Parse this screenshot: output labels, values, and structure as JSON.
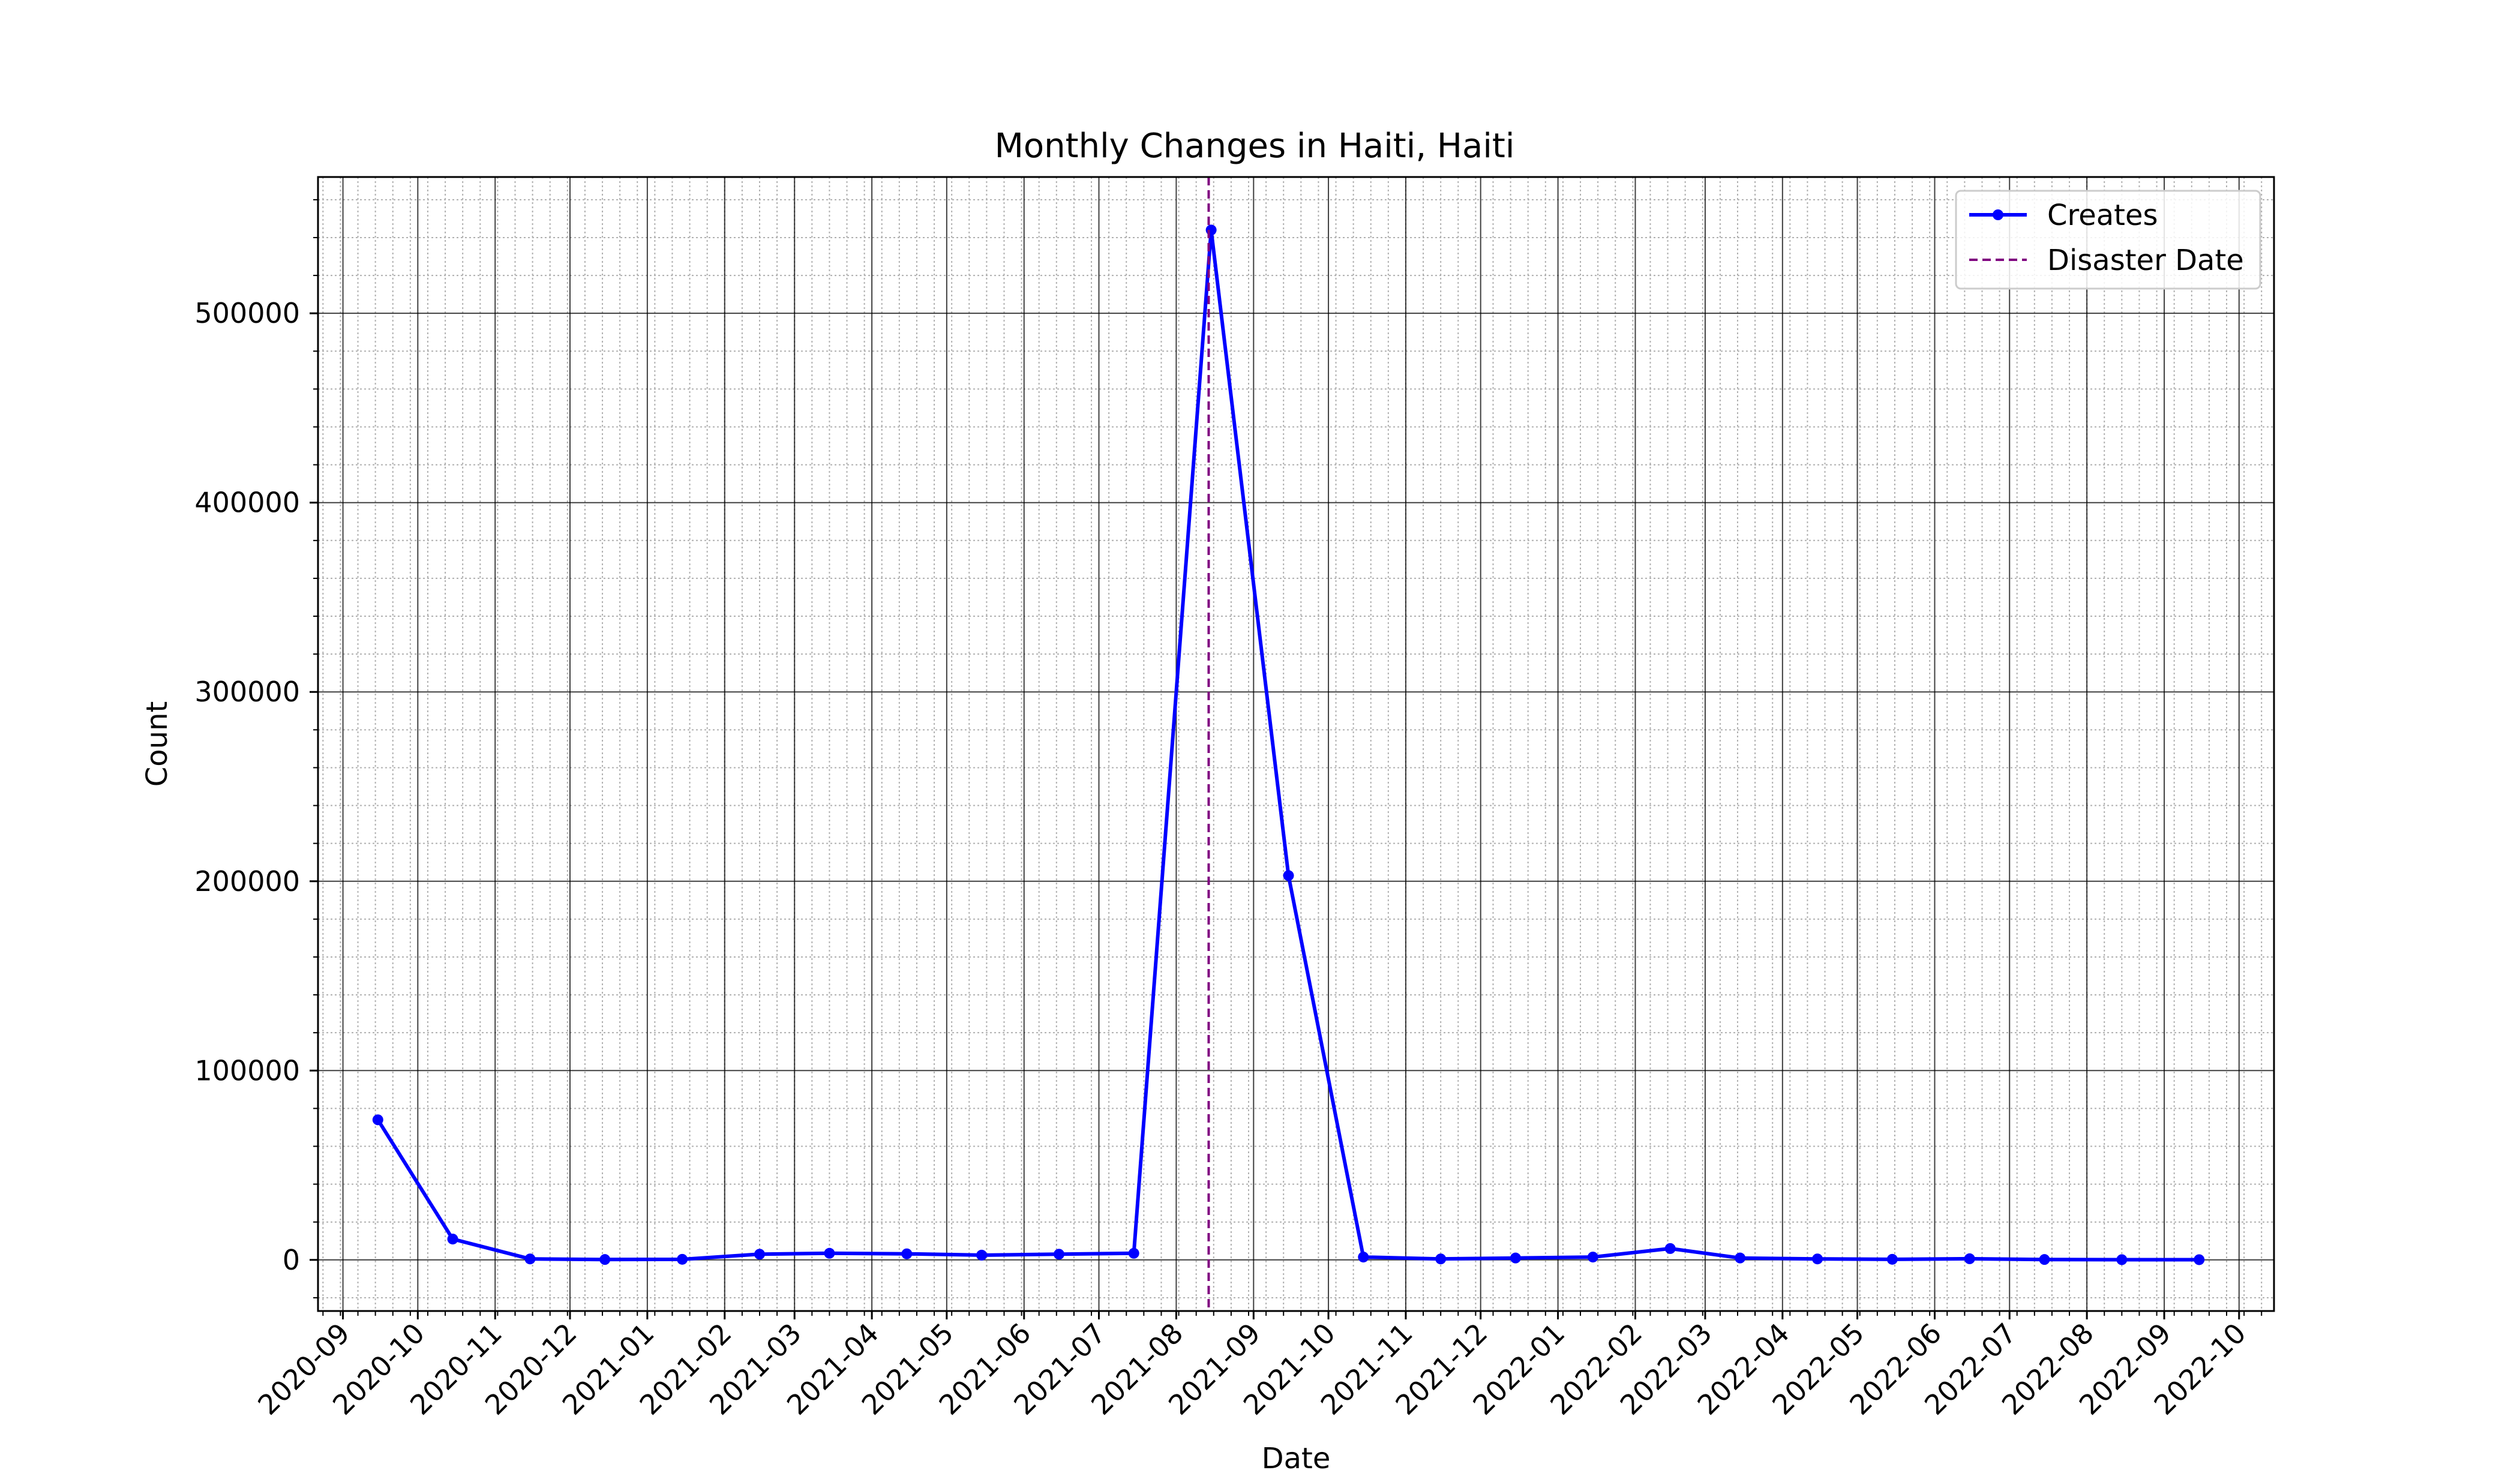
{
  "chart_data": {
    "type": "line",
    "title": "Monthly Changes in Haiti, Haiti",
    "xlabel": "Date",
    "ylabel": "Count",
    "x_ticks": [
      "2020-09",
      "2020-10",
      "2020-11",
      "2020-12",
      "2021-01",
      "2021-02",
      "2021-03",
      "2021-04",
      "2021-05",
      "2021-06",
      "2021-07",
      "2021-08",
      "2021-09",
      "2021-10",
      "2021-11",
      "2021-12",
      "2022-01",
      "2022-02",
      "2022-03",
      "2022-04",
      "2022-05",
      "2022-06",
      "2022-07",
      "2022-08",
      "2022-09",
      "2022-10"
    ],
    "xlim": [
      "2020-08-22",
      "2022-10-15"
    ],
    "y_ticks": [
      0,
      100000,
      200000,
      300000,
      400000,
      500000
    ],
    "ylim": [
      -27000,
      572000
    ],
    "grid": true,
    "minor_grid": true,
    "legend_position": "upper right",
    "series": [
      {
        "name": "Creates",
        "color": "#0000ff",
        "marker": "circle",
        "x": [
          "2020-09-15",
          "2020-10-15",
          "2020-11-15",
          "2020-12-15",
          "2021-01-15",
          "2021-02-15",
          "2021-03-15",
          "2021-04-15",
          "2021-05-15",
          "2021-06-15",
          "2021-07-15",
          "2021-08-15",
          "2021-09-15",
          "2021-10-15",
          "2021-11-15",
          "2021-12-15",
          "2022-01-15",
          "2022-02-15",
          "2022-03-15",
          "2022-04-15",
          "2022-05-15",
          "2022-06-15",
          "2022-07-15",
          "2022-08-15",
          "2022-09-15"
        ],
        "values": [
          74000,
          11000,
          500,
          200,
          300,
          3000,
          3500,
          3200,
          2500,
          3000,
          3500,
          544000,
          203000,
          1500,
          500,
          1000,
          1500,
          6000,
          1000,
          500,
          300,
          600,
          200,
          100,
          100
        ]
      }
    ],
    "vlines": [
      {
        "name": "Disaster Date",
        "x": "2021-08-14",
        "color": "#800080",
        "style": "dashed"
      }
    ]
  }
}
